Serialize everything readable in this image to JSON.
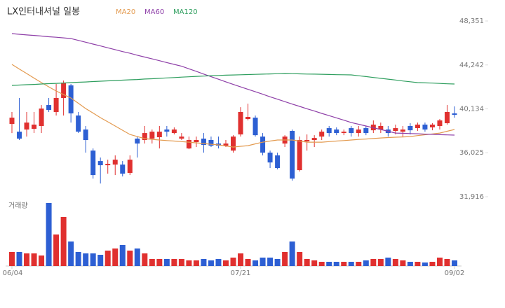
{
  "chart_data": {
    "type": "candlestick",
    "title": "LX인터내셔널 일봉",
    "volume_label": "거래량",
    "up_color": "#e0302f",
    "down_color": "#2d5fd3",
    "categories": [
      "06/04",
      null,
      null,
      null,
      null,
      null,
      null,
      null,
      null,
      null,
      null,
      null,
      null,
      null,
      null,
      null,
      null,
      null,
      null,
      null,
      null,
      null,
      null,
      null,
      null,
      null,
      null,
      null,
      null,
      null,
      null,
      "07/21",
      null,
      null,
      null,
      null,
      null,
      null,
      null,
      null,
      null,
      null,
      null,
      null,
      null,
      null,
      null,
      null,
      null,
      null,
      null,
      null,
      null,
      null,
      null,
      null,
      null,
      null,
      null,
      null,
      "09/02"
    ],
    "open": [
      38720,
      38000,
      38200,
      38260,
      38530,
      40490,
      39840,
      41150,
      42330,
      39510,
      38200,
      36230,
      35250,
      34860,
      34920,
      34920,
      34140,
      37350,
      37220,
      37350,
      37480,
      38200,
      37870,
      37350,
      36430,
      37020,
      37350,
      37220,
      36890,
      36690,
      36230,
      37740,
      39180,
      39310,
      37540,
      36040,
      35780,
      36890,
      38070,
      34400,
      37090,
      37220,
      37540,
      38330,
      38200,
      37870,
      38330,
      37870,
      38330,
      38130,
      38200,
      38200,
      38070,
      38000,
      38530,
      38330,
      38660,
      38400,
      38530,
      38790,
      39710
    ],
    "high": [
      39840,
      41150,
      39840,
      39840,
      40490,
      41150,
      42460,
      42780,
      42460,
      39840,
      38530,
      36430,
      35580,
      35380,
      35780,
      35250,
      35780,
      37540,
      38530,
      38200,
      38530,
      38530,
      38400,
      37870,
      37540,
      37540,
      37870,
      37540,
      37540,
      37220,
      37670,
      40290,
      40620,
      39510,
      37870,
      36230,
      36040,
      37670,
      38200,
      37540,
      37740,
      37670,
      38200,
      38530,
      38400,
      38200,
      38530,
      38530,
      38530,
      39050,
      38850,
      38530,
      38660,
      38530,
      38790,
      38850,
      38850,
      38790,
      39180,
      40490,
      40360
    ],
    "low": [
      37870,
      37220,
      37540,
      37870,
      37870,
      39840,
      39510,
      39510,
      38850,
      37870,
      36040,
      33610,
      33150,
      34070,
      33940,
      33810,
      33940,
      35580,
      36890,
      36890,
      36430,
      37540,
      37740,
      37220,
      36360,
      36560,
      36040,
      36560,
      36430,
      36560,
      36040,
      37540,
      39050,
      37540,
      35780,
      34600,
      34470,
      36560,
      33420,
      34270,
      36230,
      36560,
      37220,
      37540,
      37670,
      37670,
      37540,
      37540,
      37670,
      37870,
      37870,
      37540,
      37740,
      37540,
      37740,
      38070,
      38000,
      38130,
      38200,
      38660,
      39310
    ],
    "close": [
      39310,
      37350,
      38850,
      38660,
      40160,
      40030,
      41150,
      42590,
      39710,
      38000,
      37220,
      33940,
      34860,
      34990,
      35380,
      34070,
      35380,
      36890,
      37870,
      38000,
      38000,
      38000,
      38200,
      37540,
      37220,
      37220,
      36760,
      36690,
      36690,
      36890,
      37540,
      39840,
      39380,
      37670,
      36040,
      35120,
      34600,
      37540,
      33610,
      37220,
      37220,
      37410,
      38000,
      37870,
      37870,
      38000,
      37870,
      38200,
      37870,
      38660,
      38530,
      37870,
      38330,
      38200,
      38130,
      38660,
      38200,
      38660,
      39050,
      39840,
      39570
    ],
    "volume": [
      20,
      20,
      18,
      18,
      15,
      90,
      45,
      70,
      35,
      20,
      18,
      18,
      16,
      22,
      25,
      30,
      22,
      25,
      18,
      10,
      10,
      10,
      10,
      10,
      8,
      8,
      10,
      8,
      10,
      8,
      12,
      18,
      10,
      8,
      12,
      12,
      10,
      20,
      35,
      20,
      10,
      8,
      6,
      6,
      6,
      6,
      6,
      6,
      8,
      10,
      10,
      12,
      10,
      8,
      6,
      6,
      5,
      6,
      12,
      10,
      8
    ],
    "volume_ylim": [
      0,
      90
    ],
    "series": [
      {
        "name": "MA20",
        "color": "#e39a4f",
        "values": [
          44290,
          43860,
          43440,
          43010,
          42590,
          42190,
          41800,
          41470,
          41150,
          40660,
          40160,
          39740,
          39310,
          38920,
          38530,
          38130,
          37740,
          37540,
          37350,
          37280,
          37220,
          37170,
          37120,
          37070,
          37020,
          36950,
          36890,
          36820,
          36760,
          36660,
          36560,
          36630,
          36690,
          36860,
          37020,
          37120,
          37220,
          37220,
          37220,
          37120,
          37020,
          37020,
          37020,
          37070,
          37120,
          37170,
          37220,
          37270,
          37310,
          37360,
          37410,
          37450,
          37480,
          37510,
          37540,
          37630,
          37710,
          37790,
          37870,
          38040,
          38200
        ]
      },
      {
        "name": "MA60",
        "color": "#8e3fa8",
        "values": [
          47170,
          47110,
          47050,
          47000,
          46940,
          46880,
          46830,
          46770,
          46710,
          46540,
          46370,
          46190,
          46020,
          45840,
          45670,
          45490,
          45330,
          45150,
          44980,
          44810,
          44640,
          44460,
          44290,
          44120,
          43880,
          43640,
          43390,
          43140,
          42900,
          42660,
          42420,
          42190,
          41960,
          41730,
          41500,
          41260,
          41040,
          40810,
          40580,
          40360,
          40140,
          39930,
          39710,
          39500,
          39290,
          39070,
          38850,
          38690,
          38530,
          38360,
          38200,
          38040,
          37870,
          37850,
          37820,
          37800,
          37770,
          37750,
          37720,
          37700,
          37680
        ]
      },
      {
        "name": "MA120",
        "color": "#2e9e5e",
        "values": [
          42330,
          42360,
          42390,
          42420,
          42460,
          42490,
          42520,
          42550,
          42590,
          42620,
          42650,
          42690,
          42720,
          42750,
          42780,
          42820,
          42850,
          42880,
          42920,
          42950,
          42990,
          43030,
          43060,
          43100,
          43130,
          43170,
          43200,
          43240,
          43260,
          43280,
          43300,
          43320,
          43340,
          43360,
          43380,
          43400,
          43420,
          43440,
          43430,
          43410,
          43390,
          43380,
          43370,
          43350,
          43330,
          43320,
          43310,
          43230,
          43150,
          43070,
          42990,
          42910,
          42830,
          42740,
          42670,
          42590,
          42560,
          42540,
          42510,
          42480,
          42460
        ]
      }
    ],
    "ylim": [
      31916,
      48351
    ],
    "yticks": [
      {
        "value": 48351,
        "label": "48,351"
      },
      {
        "value": 44242,
        "label": "44,242"
      },
      {
        "value": 40134,
        "label": "40,134"
      },
      {
        "value": 36025,
        "label": "36,025"
      },
      {
        "value": 31916,
        "label": "31,916"
      }
    ]
  }
}
